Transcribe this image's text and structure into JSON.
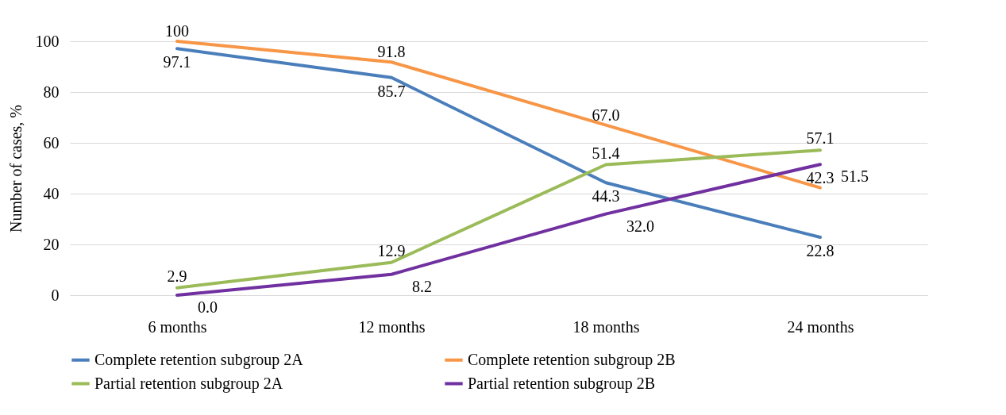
{
  "chart_data": {
    "type": "line",
    "ylabel": "Number of cases, %",
    "categories": [
      "6 months",
      "12 months",
      "18 months",
      "24 months"
    ],
    "series": [
      {
        "name": "Complete retention subgroup 2A",
        "color": "#4a7ebb",
        "values": [
          97.1,
          85.7,
          44.3,
          22.8
        ],
        "value_labels": [
          "97.1",
          "85.7",
          "44.3",
          "22.8"
        ]
      },
      {
        "name": "Complete retention subgroup 2B",
        "color": "#f79646",
        "values": [
          100,
          91.8,
          67.0,
          42.3
        ],
        "value_labels": [
          "100",
          "91.8",
          "67.0",
          "42.3"
        ]
      },
      {
        "name": "Partial retention subgroup 2A",
        "color": "#9bbb59",
        "values": [
          2.9,
          12.9,
          51.4,
          57.1
        ],
        "value_labels": [
          "2.9",
          "12.9",
          "51.4",
          "57.1"
        ]
      },
      {
        "name": "Partial retention subgroup 2B",
        "color": "#7030a0",
        "values": [
          0.0,
          8.2,
          32.0,
          51.5
        ],
        "value_labels": [
          "0.0",
          "8.2",
          "32.0",
          "51.5"
        ]
      }
    ],
    "ylim": [
      0,
      100
    ],
    "yticks": [
      0,
      20,
      40,
      60,
      80,
      100
    ],
    "grid": "y",
    "legend": "bottom",
    "marker": "none",
    "line_style": "solid"
  }
}
